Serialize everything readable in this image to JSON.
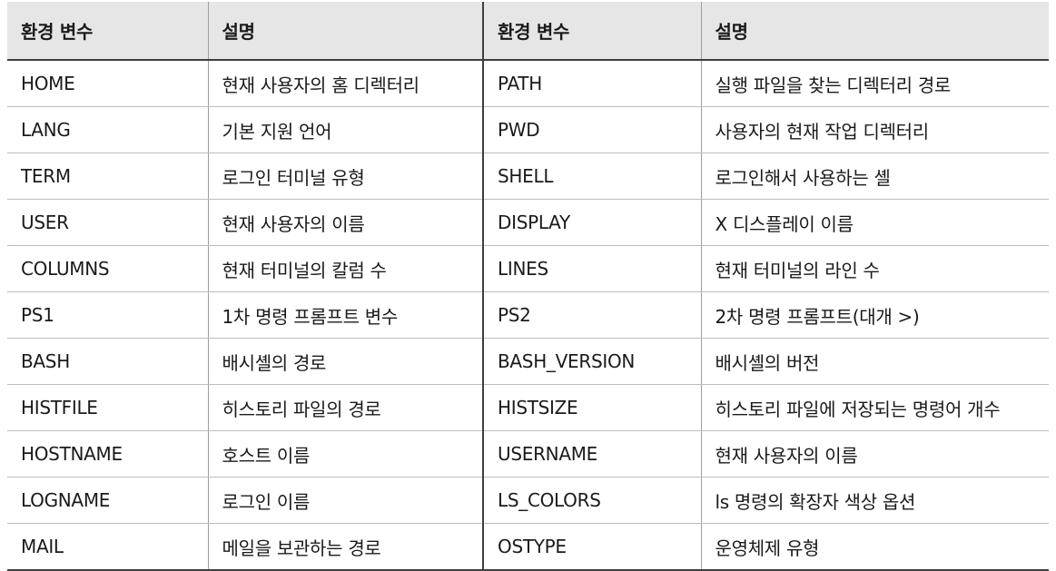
{
  "header": {
    "col1": "환경 변수",
    "col2": "설명",
    "col3": "환경 변수",
    "col4": "설명"
  },
  "rows": [
    {
      "var_left": "HOME",
      "desc_left": "현재 사용자의 홈 디렉터리",
      "var_right": "PATH",
      "desc_right": "실행 파일을 찾는 디렉터리 경로"
    },
    {
      "var_left": "LANG",
      "desc_left": "기본 지원 언어",
      "var_right": "PWD",
      "desc_right": "사용자의 현재 작업 디렉터리"
    },
    {
      "var_left": "TERM",
      "desc_left": "로그인 터미널 유형",
      "var_right": "SHELL",
      "desc_right": "로그인해서 사용하는 셸"
    },
    {
      "var_left": "USER",
      "desc_left": "현재 사용자의 이름",
      "var_right": "DISPLAY",
      "desc_right": "X 디스플레이 이름"
    },
    {
      "var_left": "COLUMNS",
      "desc_left": "현재 터미널의 칼럼 수",
      "var_right": "LINES",
      "desc_right": "현재 터미널의 라인 수"
    },
    {
      "var_left": "PS1",
      "desc_left": "1차 명령 프롬프트 변수",
      "var_right": "PS2",
      "desc_right": "2차 명령 프롬프트(대개 >)"
    },
    {
      "var_left": "BASH",
      "desc_left": "배시셸의 경로",
      "var_right": "BASH_VERSION",
      "desc_right": "배시셸의 버전"
    },
    {
      "var_left": "HISTFILE",
      "desc_left": "히스토리 파일의 경로",
      "var_right": "HISTSIZE",
      "desc_right": "히스토리 파일에 저장되는 명령어 개수"
    },
    {
      "var_left": "HOSTNAME",
      "desc_left": "호스트 이름",
      "var_right": "USERNAME",
      "desc_right": "현재 사용자의 이름"
    },
    {
      "var_left": "LOGNAME",
      "desc_left": "로그인 이름",
      "var_right": "LS_COLORS",
      "desc_right": "ls 명령의 확장자 색상 옵션"
    },
    {
      "var_left": "MAIL",
      "desc_left": "메일을 보관하는 경로",
      "var_right": "OSTYPE",
      "desc_right": "운영체제 유형"
    }
  ]
}
